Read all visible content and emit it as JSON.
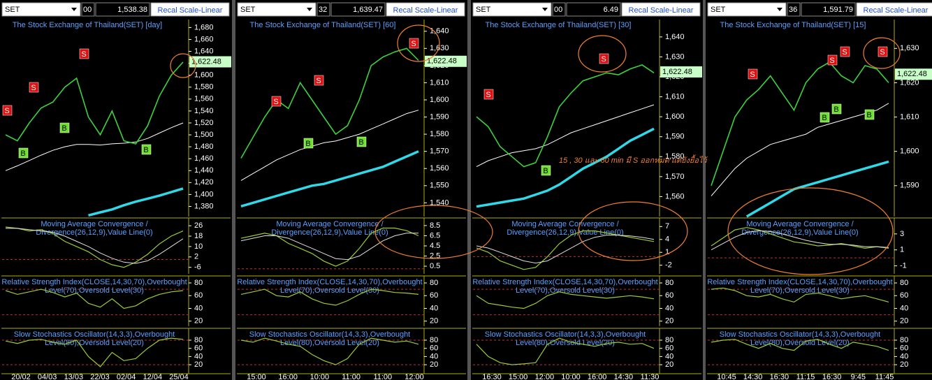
{
  "annotation": "15 , 30 และ 60 min มี S ออกหมด แต่ยังยื้อไว้",
  "panels": [
    {
      "symbol": "SET",
      "field": "00",
      "price": "1,538.38",
      "button": "Recal Scale-Linear",
      "title": "The Stock Exchange of Thailand(SET) [day]",
      "last_price": {
        "value": 1622.48,
        "label": "1,622.48"
      },
      "ylim": [
        1363,
        1691
      ],
      "yticks": [
        {
          "value": 1680,
          "label": "1,680"
        },
        {
          "value": 1660,
          "label": "1,660"
        },
        {
          "value": 1640,
          "label": "1,640"
        },
        {
          "value": 1620,
          "label": "1,620"
        },
        {
          "value": 1600,
          "label": "1,600"
        },
        {
          "value": 1580,
          "label": "1,580"
        },
        {
          "value": 1560,
          "label": "1,560"
        },
        {
          "value": 1540,
          "label": "1,540"
        },
        {
          "value": 1520,
          "label": "1,520"
        },
        {
          "value": 1500,
          "label": "1,500"
        },
        {
          "value": 1480,
          "label": "1,480"
        },
        {
          "value": 1460,
          "label": "1,460"
        },
        {
          "value": 1440,
          "label": "1,440"
        },
        {
          "value": 1420,
          "label": "1,420"
        },
        {
          "value": 1400,
          "label": "1,400"
        },
        {
          "value": 1380,
          "label": "1,380"
        }
      ],
      "close": [
        1500,
        1490,
        1520,
        1545,
        1555,
        1580,
        1595,
        1530,
        1500,
        1540,
        1490,
        1485,
        1515,
        1565,
        1600,
        1622
      ],
      "ma": [
        1440,
        1448,
        1457,
        1466,
        1474,
        1480,
        1484,
        1484,
        1483,
        1485,
        1486,
        1488,
        1494,
        1503,
        1512,
        1520
      ],
      "trend": [
        null,
        null,
        null,
        null,
        null,
        null,
        null,
        1365,
        1370,
        1375,
        1382,
        1388,
        1393,
        1398,
        1404,
        1410
      ],
      "signals": [
        "S",
        "S",
        "S",
        "B",
        "B",
        "B"
      ],
      "macd": {
        "title": [
          "Moving Average Convergence /",
          "Divergence(26,12,9),Value Line(0)"
        ],
        "ylim": [
          -11,
          32
        ],
        "yticks": [
          26,
          18,
          10,
          2,
          -6
        ],
        "levels": [
          0
        ],
        "values": [
          25,
          24,
          22,
          23,
          20,
          14,
          10,
          6,
          0,
          -4,
          -6,
          -2,
          4,
          12,
          18,
          22
        ],
        "signal": [
          24,
          24,
          23,
          22,
          21,
          18,
          14,
          10,
          5,
          1,
          -2,
          -3,
          -1,
          4,
          10,
          16
        ]
      },
      "rsi": {
        "title": [
          "Relative Strength Index(CLOSE,14,30,70),Overbought",
          "Level(70),Oversold Level(30)"
        ],
        "ylim": [
          12,
          91
        ],
        "yticks": [
          80,
          60,
          40,
          20
        ],
        "levels": [
          70,
          30
        ],
        "values": [
          68,
          62,
          66,
          70,
          65,
          58,
          64,
          48,
          42,
          55,
          40,
          44,
          55,
          62,
          66,
          68
        ]
      },
      "stoch": {
        "title": [
          "Slow Stochastics Oscillator(14,3,3),Overbought",
          "Level(80),Oversold Level(20)"
        ],
        "ylim": [
          -2,
          109
        ],
        "yticks": [
          80,
          60,
          40,
          20
        ],
        "levels": [
          80,
          20
        ],
        "values": [
          78,
          72,
          80,
          82,
          75,
          70,
          80,
          40,
          15,
          50,
          30,
          35,
          60,
          80,
          85,
          82
        ]
      },
      "dates": [
        "20/02",
        "04/03",
        "13/03",
        "22/03",
        "02/04",
        "12/04",
        "25/04"
      ]
    },
    {
      "symbol": "SET",
      "field": "32",
      "price": "1,639.47",
      "button": "Recal Scale-Linear",
      "title": "The Stock Exchange of Thailand(SET) [60]",
      "last_price": {
        "value": 1622.48,
        "label": "1,622.48"
      },
      "ylim": [
        1532,
        1646
      ],
      "yticks": [
        {
          "value": 1640,
          "label": "1,640"
        },
        {
          "value": 1630,
          "label": "1,630"
        },
        {
          "value": 1620,
          "label": "1,620"
        },
        {
          "value": 1610,
          "label": "1,610"
        },
        {
          "value": 1600,
          "label": "1,600"
        },
        {
          "value": 1590,
          "label": "1,590"
        },
        {
          "value": 1580,
          "label": "1,580"
        },
        {
          "value": 1570,
          "label": "1,570"
        },
        {
          "value": 1560,
          "label": "1,560"
        },
        {
          "value": 1550,
          "label": "1,550"
        },
        {
          "value": 1540,
          "label": "1,540"
        }
      ],
      "close": [
        1566,
        1578,
        1590,
        1600,
        1595,
        1610,
        1600,
        1590,
        1580,
        1585,
        1600,
        1620,
        1625,
        1628,
        1630,
        1623
      ],
      "ma": [
        1553,
        1557,
        1561,
        1565,
        1568,
        1571,
        1573,
        1575,
        1576,
        1578,
        1580,
        1583,
        1586,
        1589,
        1592,
        1594
      ],
      "trend": [
        1538,
        1540,
        1542,
        1544,
        1546,
        1548,
        1550,
        1551,
        1553,
        1555,
        1557,
        1559,
        1561,
        1564,
        1567,
        1570
      ],
      "signals": [
        "S",
        "S",
        "S",
        "B",
        "B"
      ],
      "macd": {
        "title": [
          "Moving Average Convergence /",
          "Divergence(26,12,9),Value Line(0)"
        ],
        "ylim": [
          -1,
          10
        ],
        "yticks": [
          8.5,
          6.5,
          4.5,
          2.5,
          0.5
        ],
        "levels": [
          0
        ],
        "values": [
          6,
          6.5,
          7,
          6.5,
          5,
          4,
          3,
          1.5,
          0.5,
          1.5,
          4,
          7,
          8,
          8,
          7.5,
          6.5
        ],
        "signal": [
          5.5,
          6,
          6.5,
          6.5,
          6,
          5,
          4,
          3,
          2,
          1.8,
          2.5,
          4,
          5.5,
          6.5,
          7,
          7
        ]
      },
      "rsi": {
        "title": [
          "Relative Strength Index(CLOSE,14,30,70),Overbought",
          "Level(70),Oversold Level(30)"
        ],
        "ylim": [
          12,
          91
        ],
        "yticks": [
          80,
          60,
          40,
          20
        ],
        "levels": [
          70,
          30
        ],
        "values": [
          62,
          66,
          70,
          60,
          58,
          66,
          55,
          48,
          45,
          52,
          62,
          70,
          68,
          65,
          64,
          62
        ]
      },
      "stoch": {
        "title": [
          "Slow Stochastics Oscillator(14,3,3),Overbought",
          "Level(80),Oversold Level(20)"
        ],
        "ylim": [
          -2,
          109
        ],
        "yticks": [
          80,
          60,
          40,
          20
        ],
        "levels": [
          80,
          20
        ],
        "values": [
          80,
          75,
          85,
          78,
          70,
          65,
          45,
          30,
          20,
          35,
          70,
          85,
          80,
          75,
          78,
          70
        ]
      },
      "dates": [
        "15:00",
        "16:00",
        "10:00",
        "11:00",
        "11:00",
        "12:00"
      ]
    },
    {
      "symbol": "SET",
      "field": "00",
      "price": "6.49",
      "button": "Recal Scale-Linear",
      "title": "The Stock Exchange of Thailand(SET) [30]",
      "last_price": {
        "value": 1622.48,
        "label": "1,622.48"
      },
      "ylim": [
        1550,
        1648
      ],
      "yticks": [
        {
          "value": 1640,
          "label": "1,640"
        },
        {
          "value": 1630,
          "label": "1,630"
        },
        {
          "value": 1620,
          "label": "1,620"
        },
        {
          "value": 1610,
          "label": "1,610"
        },
        {
          "value": 1600,
          "label": "1,600"
        },
        {
          "value": 1590,
          "label": "1,590"
        },
        {
          "value": 1580,
          "label": "1,580"
        },
        {
          "value": 1570,
          "label": "1,570"
        },
        {
          "value": 1560,
          "label": "1,560"
        }
      ],
      "close": [
        1600,
        1595,
        1585,
        1580,
        1575,
        1577,
        1590,
        1605,
        1612,
        1618,
        1620,
        1622,
        1621,
        1624,
        1626,
        1622
      ],
      "ma": [
        1575,
        1578,
        1580,
        1582,
        1583,
        1584,
        1586,
        1589,
        1592,
        1594,
        1596,
        1598,
        1600,
        1602,
        1604,
        1606
      ],
      "trend": [
        1555,
        1556,
        1557,
        1558,
        1559,
        1561,
        1563,
        1566,
        1570,
        1574,
        1577,
        1580,
        1584,
        1588,
        1591,
        1594
      ],
      "signals": [
        "S",
        "S",
        "B"
      ],
      "macd": {
        "title": [
          "Moving Average Convergence /",
          "Divergence(26,12,9),Value Line(0)"
        ],
        "ylim": [
          -4,
          9
        ],
        "yticks": [
          7,
          4,
          1,
          -2
        ],
        "levels": [
          0
        ],
        "values": [
          2,
          1,
          -1,
          -2,
          -3,
          -2.5,
          0,
          3,
          5,
          6,
          6,
          5.5,
          5,
          4.5,
          4,
          3.5
        ],
        "signal": [
          2.5,
          2,
          1,
          0,
          -1,
          -1.5,
          -1,
          0.5,
          2,
          3.5,
          4.5,
          5,
          5,
          4.8,
          4.5,
          4
        ]
      },
      "rsi": {
        "title": [
          "Relative Strength Index(CLOSE,14,30,70),Overbought",
          "Level(70),Oversold Level(30)"
        ],
        "ylim": [
          12,
          91
        ],
        "yticks": [
          80,
          60,
          40,
          20
        ],
        "levels": [
          70,
          30
        ],
        "values": [
          60,
          48,
          45,
          42,
          40,
          48,
          60,
          66,
          62,
          60,
          58,
          56,
          58,
          60,
          58,
          55
        ]
      },
      "stoch": {
        "title": [
          "Slow Stochastics Oscillator(14,3,3),Overbought",
          "Level(80),Oversold Level(20)"
        ],
        "ylim": [
          -2,
          109
        ],
        "yticks": [
          80,
          60,
          40,
          20
        ],
        "levels": [
          80,
          20
        ],
        "values": [
          70,
          40,
          25,
          20,
          22,
          25,
          70,
          85,
          75,
          70,
          65,
          72,
          75,
          70,
          72,
          60
        ]
      },
      "dates": [
        "16:30",
        "15:00",
        "12:00",
        "10:00",
        "16:00",
        "14:30",
        "11:30"
      ]
    },
    {
      "symbol": "SET",
      "field": "36",
      "price": "1,591.79",
      "button": "Recal Scale-Linear",
      "title": "The Stock Exchange of Thailand(SET) [15]",
      "last_price": {
        "value": 1622.48,
        "label": "1,622.48"
      },
      "ylim": [
        1581,
        1638
      ],
      "yticks": [
        {
          "value": 1630,
          "label": "1,630"
        },
        {
          "value": 1620,
          "label": "1,620"
        },
        {
          "value": 1610,
          "label": "1,610"
        },
        {
          "value": 1600,
          "label": "1,600"
        },
        {
          "value": 1590,
          "label": "1,590"
        }
      ],
      "close": [
        1590,
        1600,
        1610,
        1615,
        1618,
        1622,
        1617,
        1612,
        1620,
        1624,
        1626,
        1622,
        1620,
        1625,
        1624,
        1620
      ],
      "ma": [
        1587,
        1591,
        1595,
        1598,
        1600,
        1602,
        1603,
        1604,
        1605,
        1607,
        1608,
        1609,
        1610,
        1611,
        1612,
        1614
      ],
      "trend": [
        null,
        null,
        null,
        1581,
        1583,
        1585,
        1587,
        1589,
        1590,
        1591,
        1592,
        1593,
        1594,
        1595,
        1596,
        1597
      ],
      "signals": [
        "S",
        "S",
        "S",
        "S",
        "B",
        "B",
        "B"
      ],
      "macd": {
        "title": [
          "Moving Average Convergence /",
          "Divergence(26,12,9),Value Line(0)"
        ],
        "ylim": [
          -2,
          5
        ],
        "yticks": [
          3,
          1,
          -1
        ],
        "levels": [
          0
        ],
        "values": [
          1.5,
          2.5,
          3.5,
          3.8,
          3.5,
          3,
          2.5,
          2,
          1.8,
          1.5,
          1.6,
          1.8,
          1.5,
          1.2,
          1.4,
          1.2
        ],
        "signal": [
          1,
          1.8,
          2.6,
          3.2,
          3.4,
          3.3,
          3,
          2.6,
          2.2,
          1.9,
          1.7,
          1.7,
          1.6,
          1.4,
          1.4,
          1.3
        ]
      },
      "rsi": {
        "title": [
          "Relative Strength Index(CLOSE,14,30,70),Overbought",
          "Level(70),Oversold Level(30)"
        ],
        "ylim": [
          12,
          91
        ],
        "yticks": [
          80,
          60,
          40,
          20
        ],
        "levels": [
          70,
          30
        ],
        "values": [
          70,
          72,
          68,
          60,
          58,
          62,
          55,
          50,
          62,
          64,
          60,
          55,
          58,
          60,
          55,
          50
        ]
      },
      "stoch": {
        "title": [
          "Slow Stochastics Oscillator(14,3,3),Overbought",
          "Level(80),Oversold Level(20)"
        ],
        "ylim": [
          -2,
          109
        ],
        "yticks": [
          80,
          60,
          40,
          20
        ],
        "levels": [
          80,
          20
        ],
        "values": [
          75,
          80,
          82,
          70,
          60,
          72,
          60,
          55,
          78,
          82,
          70,
          60,
          75,
          70,
          65,
          55
        ]
      },
      "dates": [
        "10:45",
        "14:30",
        "16:30",
        "11:15",
        "16:30",
        "9:45",
        "11:45"
      ]
    }
  ]
}
